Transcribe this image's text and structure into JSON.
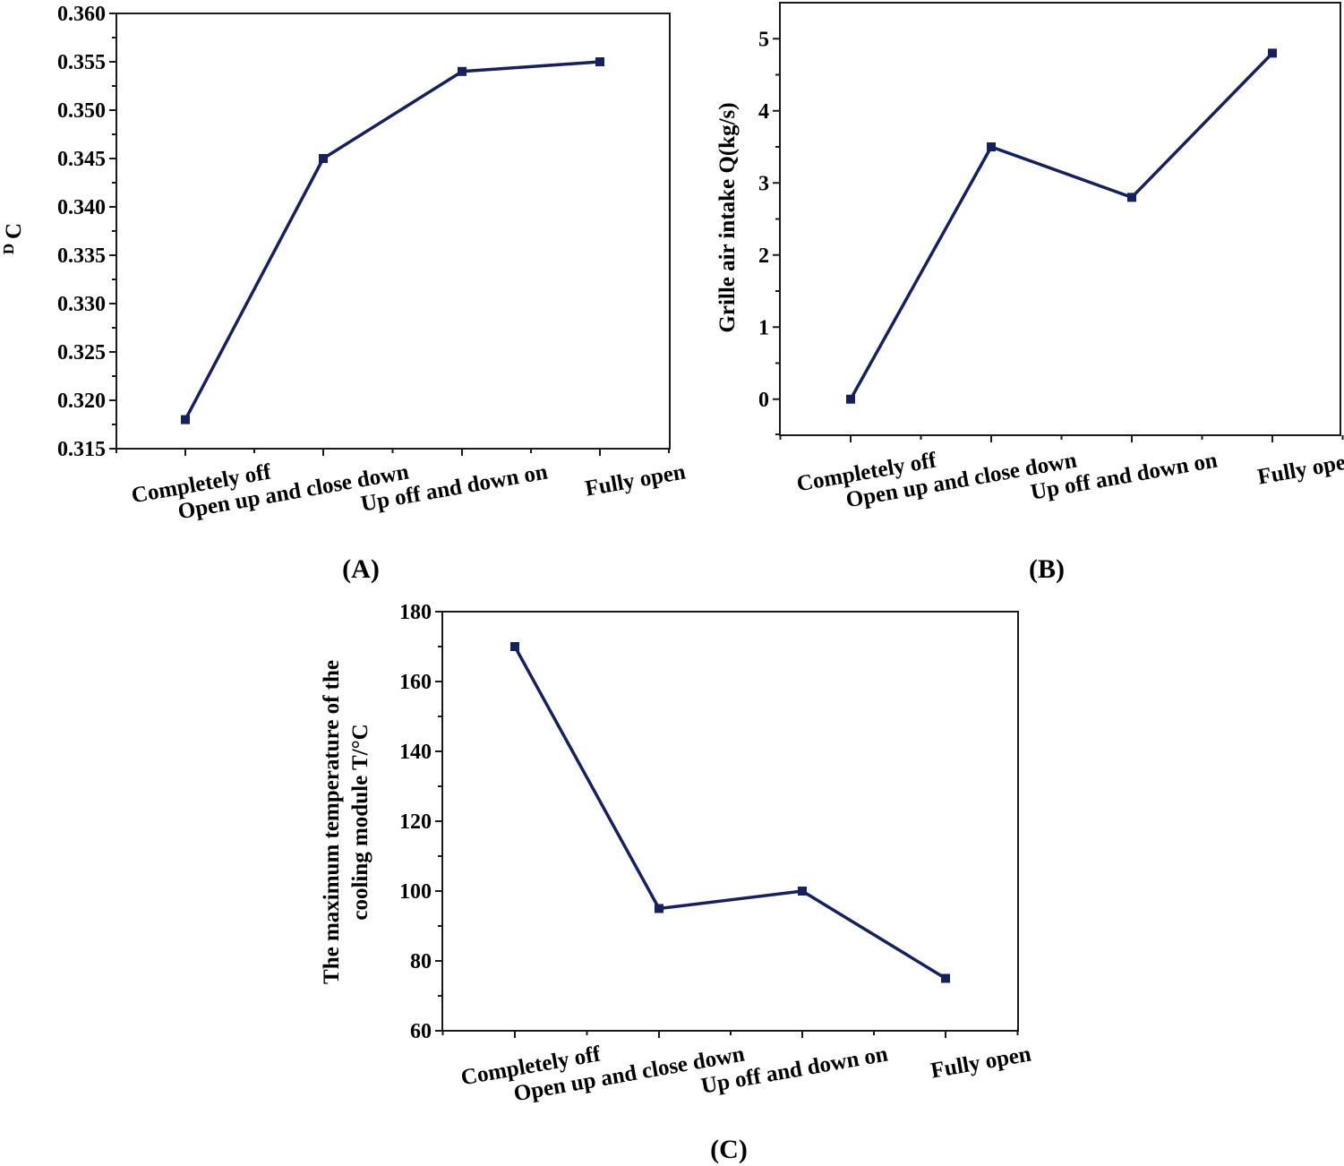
{
  "colors": {
    "series": "#15205e",
    "axis": "#1a1a1a"
  },
  "chart_data": [
    {
      "id": "A",
      "panel_label": "(A)",
      "type": "line",
      "categories": [
        "Completely off",
        "Open up and close down",
        "Up off and down on",
        "Fully open"
      ],
      "values": [
        0.318,
        0.345,
        0.354,
        0.355
      ],
      "ylabel": "C",
      "ylabel_sub": "D",
      "ylim": [
        0.315,
        0.36
      ],
      "yticks": [
        "0.315",
        "0.320",
        "0.325",
        "0.330",
        "0.335",
        "0.340",
        "0.345",
        "0.350",
        "0.355",
        "0.360"
      ],
      "marker": "square"
    },
    {
      "id": "B",
      "panel_label": "(B)",
      "type": "line",
      "categories": [
        "Completely off",
        "Open up and close down",
        "Up off and down on",
        "Fully open"
      ],
      "values": [
        0,
        3.5,
        2.8,
        4.8
      ],
      "ylabel": "Grille air intake Q(kg/s)",
      "ylim": [
        -0.5,
        5.5
      ],
      "yticks": [
        "0",
        "1",
        "2",
        "3",
        "4",
        "5"
      ],
      "marker": "square"
    },
    {
      "id": "C",
      "panel_label": "(C)",
      "type": "line",
      "categories": [
        "Completely off",
        "Open up and close down",
        "Up off and down on",
        "Fully open"
      ],
      "values": [
        170,
        95,
        100,
        75
      ],
      "ylabel_lines": [
        "The maximum temperature of the",
        "cooling module T/°C"
      ],
      "ylim": [
        60,
        180
      ],
      "yticks": [
        "60",
        "80",
        "100",
        "120",
        "140",
        "160",
        "180"
      ],
      "marker": "square"
    }
  ]
}
